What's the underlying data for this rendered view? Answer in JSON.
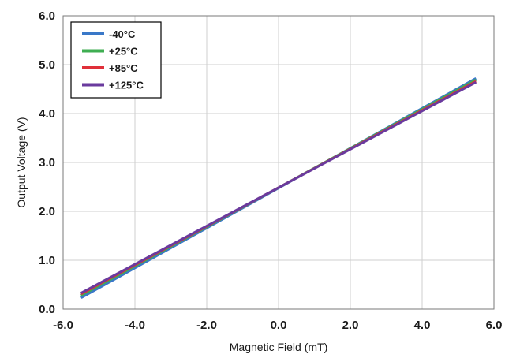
{
  "chart_data": {
    "type": "line",
    "title": "",
    "xlabel": "Magnetic Field (mT)",
    "ylabel": "Output Voltage (V)",
    "xlim": [
      -6.0,
      6.0
    ],
    "ylim": [
      0.0,
      6.0
    ],
    "xticks": [
      "-6.0",
      "-4.0",
      "-2.0",
      "0.0",
      "2.0",
      "4.0",
      "6.0"
    ],
    "yticks": [
      "0.0",
      "1.0",
      "2.0",
      "3.0",
      "4.0",
      "5.0",
      "6.0"
    ],
    "grid": true,
    "legend_position": "top-left",
    "series": [
      {
        "name": "-40°C",
        "color": "#3a78c8",
        "x": [
          -5.5,
          5.5
        ],
        "y": [
          0.23,
          4.72
        ]
      },
      {
        "name": "+25°C",
        "color": "#3fae52",
        "x": [
          -5.5,
          5.5
        ],
        "y": [
          0.28,
          4.69
        ]
      },
      {
        "name": "+85°C",
        "color": "#e0303a",
        "x": [
          -5.5,
          5.5
        ],
        "y": [
          0.31,
          4.66
        ]
      },
      {
        "name": "+125°C",
        "color": "#6a3a9e",
        "x": [
          -5.5,
          5.5
        ],
        "y": [
          0.33,
          4.64
        ]
      }
    ]
  }
}
